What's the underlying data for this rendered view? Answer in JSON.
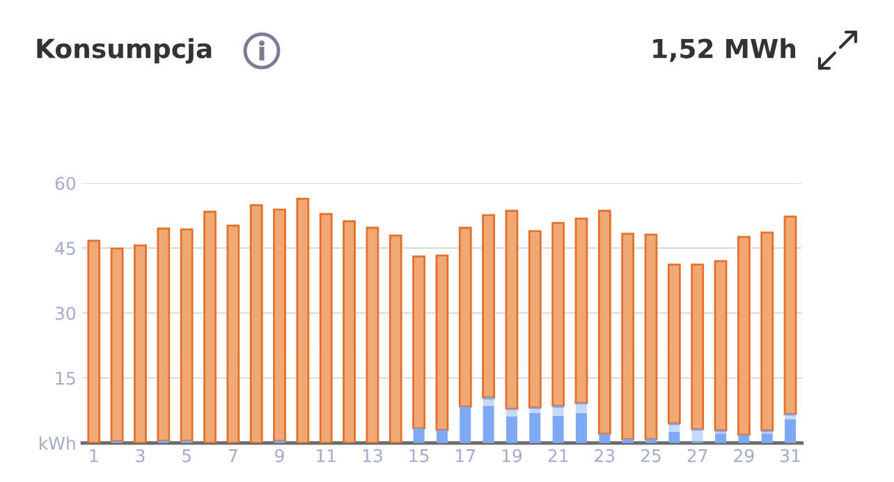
{
  "chart_data": {
    "type": "bar",
    "title": "Konsumpcja",
    "annotations": [
      "1,52 MWh"
    ],
    "categories": [
      "1",
      null,
      "3",
      null,
      "5",
      null,
      "7",
      null,
      "9",
      null,
      "11",
      null,
      "13",
      null,
      "15",
      null,
      "17",
      null,
      "19",
      null,
      "21",
      null,
      "23",
      null,
      "25",
      null,
      "27",
      null,
      "29",
      null,
      "31"
    ],
    "stacked": true,
    "series": [
      {
        "color": "#7fa8f5",
        "values": [
          0,
          0.4,
          0,
          0.5,
          0.5,
          0,
          0,
          0,
          0.5,
          0,
          0,
          0,
          0,
          0,
          3.4,
          3.0,
          8.4,
          8.6,
          6.1,
          7.0,
          6.3,
          6.9,
          2.1,
          0.9,
          0.9,
          2.6,
          0.5,
          2.2,
          1.9,
          2.2,
          5.5
        ]
      },
      {
        "color": "#c5dbf9",
        "values": [
          0,
          0,
          0,
          0,
          0,
          0,
          0,
          0,
          0,
          0,
          0,
          0,
          0,
          0,
          0,
          0,
          0,
          1.4,
          1.5,
          0.8,
          1.8,
          2.0,
          0,
          0,
          0,
          1.5,
          2.3,
          0.3,
          0,
          0.3,
          0.8
        ]
      },
      {
        "color": "#7fa8f5",
        "values": [
          0,
          0,
          0,
          0,
          0,
          0,
          0,
          0,
          0,
          0,
          0,
          0,
          0,
          0,
          0,
          0,
          0,
          0.5,
          0.3,
          0.4,
          0.5,
          0.3,
          0,
          0,
          0,
          0.4,
          0.4,
          0.4,
          0,
          0.4,
          0.4
        ]
      },
      {
        "color": "#f0a875",
        "values": [
          46.7,
          44.5,
          45.6,
          49.0,
          48.8,
          53.4,
          50.2,
          54.9,
          53.4,
          56.4,
          52.9,
          51.2,
          49.7,
          47.9,
          39.7,
          40.3,
          41.3,
          42.1,
          45.7,
          40.7,
          42.2,
          42.6,
          51.5,
          47.4,
          47.2,
          36.7,
          38.0,
          39.1,
          45.7,
          45.7,
          45.6
        ]
      }
    ],
    "ylim": [
      0,
      60
    ],
    "yticks": [
      {
        "value": 0,
        "label": "kWh"
      },
      15,
      30,
      45,
      60
    ],
    "grid": "y"
  }
}
